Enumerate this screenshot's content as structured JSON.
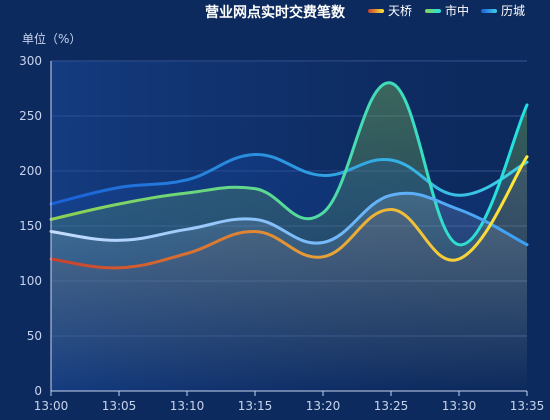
{
  "chart_data": {
    "type": "line",
    "title": "营业网点实时交费笔数",
    "ylabel": "单位（%）",
    "xlabel": "",
    "categories": [
      "13:00",
      "13:05",
      "13:10",
      "13:15",
      "13:20",
      "13:25",
      "13:30",
      "13:35"
    ],
    "yticks": [
      0,
      50,
      100,
      150,
      200,
      250,
      300
    ],
    "ylim": [
      0,
      300
    ],
    "grid": true,
    "legend_position": "top-right",
    "series": [
      {
        "name": "天桥",
        "values": [
          120,
          112,
          125,
          145,
          122,
          165,
          120,
          213
        ],
        "color_start": "#c8402e",
        "color_end": "#ffe93a"
      },
      {
        "name": "市中",
        "values": [
          156,
          170,
          180,
          184,
          162,
          280,
          133,
          260
        ],
        "color_start": "#8fd14f",
        "color_end": "#1fe2e6"
      },
      {
        "name": "历城",
        "values": [
          170,
          185,
          192,
          215,
          196,
          210,
          178,
          208
        ],
        "color_start": "#1a5fd8",
        "color_end": "#3fd0e8"
      },
      {
        "name": "",
        "values": [
          145,
          137,
          147,
          156,
          135,
          178,
          165,
          133
        ],
        "color_start": "#c6dcff",
        "color_end": "#3aa0f5"
      }
    ]
  }
}
